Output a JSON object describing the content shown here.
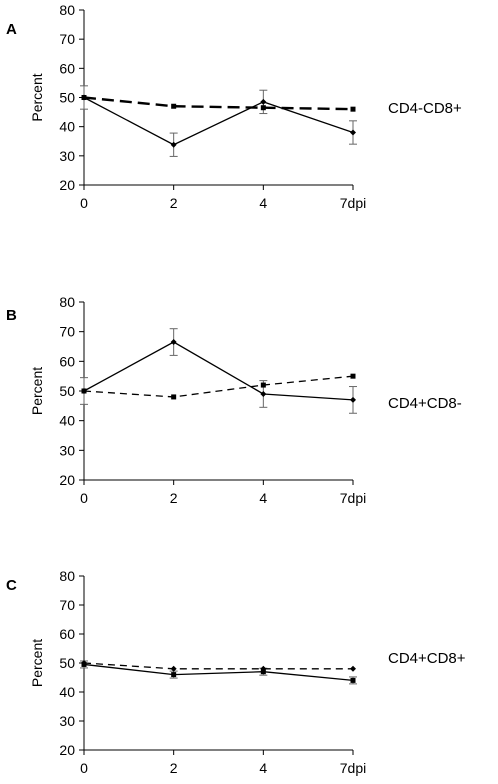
{
  "chart_data": [
    {
      "type": "line",
      "panel_label": "A",
      "side_label": "CD4-CD8+",
      "ylabel": "Percent",
      "xlabel": "",
      "categories": [
        "0",
        "2",
        "4",
        "7dpi"
      ],
      "ylim": [
        20,
        80
      ],
      "yticks": [
        20,
        30,
        40,
        50,
        60,
        70,
        80
      ],
      "series": [
        {
          "style": "solid",
          "marker": "diamond",
          "values": [
            50,
            33.8,
            48.5,
            38
          ],
          "errors": [
            4,
            4,
            4,
            4
          ]
        },
        {
          "style": "dashed",
          "marker": "square",
          "values": [
            50,
            47,
            46.5,
            46
          ],
          "errors": null
        }
      ]
    },
    {
      "type": "line",
      "panel_label": "B",
      "side_label": "CD4+CD8-",
      "ylabel": "Percent",
      "xlabel": "",
      "categories": [
        "0",
        "2",
        "4",
        "7dpi"
      ],
      "ylim": [
        20,
        80
      ],
      "yticks": [
        20,
        30,
        40,
        50,
        60,
        70,
        80
      ],
      "series": [
        {
          "style": "solid",
          "marker": "diamond",
          "values": [
            50,
            66.5,
            49,
            47
          ],
          "errors": [
            4.5,
            4.5,
            4.5,
            4.5
          ]
        },
        {
          "style": "dashed",
          "marker": "square",
          "values": [
            50,
            48,
            52,
            55
          ],
          "errors": null
        }
      ]
    },
    {
      "type": "line",
      "panel_label": "C",
      "side_label": "CD4+CD8+",
      "ylabel": "Percent",
      "xlabel": "",
      "categories": [
        "0",
        "2",
        "4",
        "7dpi"
      ],
      "ylim": [
        20,
        80
      ],
      "yticks": [
        20,
        30,
        40,
        50,
        60,
        70,
        80
      ],
      "series": [
        {
          "style": "solid",
          "marker": "square",
          "values": [
            49.5,
            46,
            47,
            44
          ],
          "errors": [
            1.2,
            1.2,
            1.2,
            1.2
          ]
        },
        {
          "style": "dashed",
          "marker": "diamond",
          "values": [
            50,
            48,
            48,
            48
          ],
          "errors": null
        }
      ]
    }
  ]
}
